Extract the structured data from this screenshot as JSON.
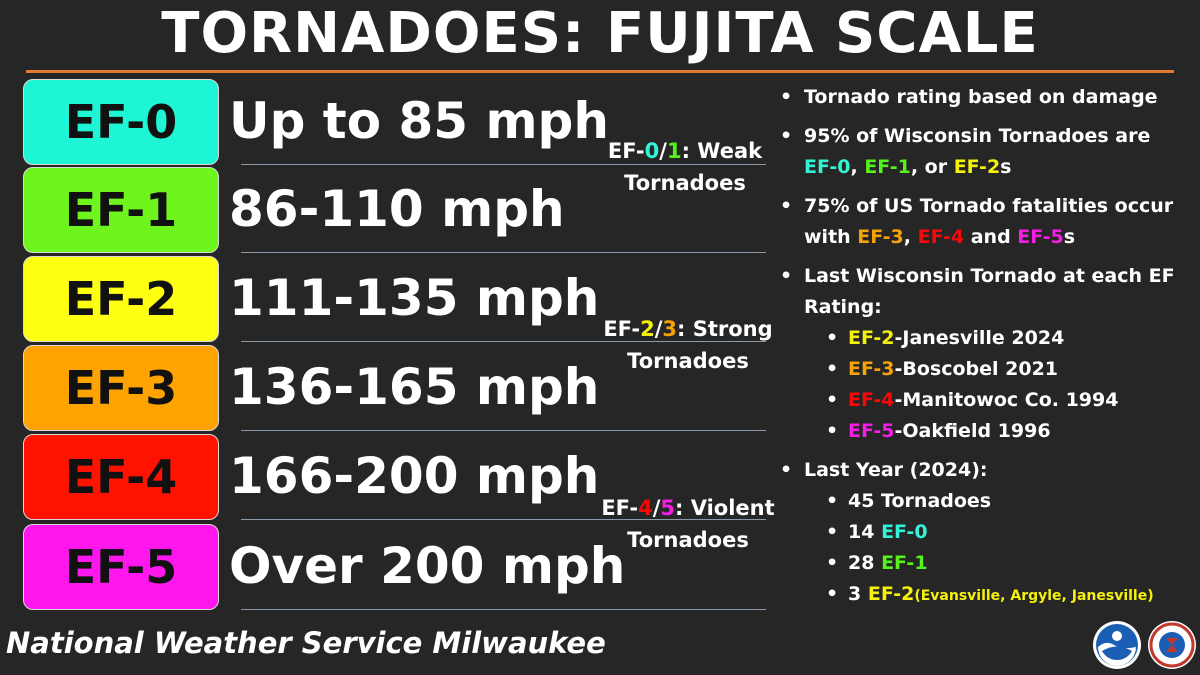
{
  "title": "TORNADOES: FUJITA SCALE",
  "scale": [
    {
      "label": "EF-0",
      "speed": "Up to 85 mph",
      "color": "#1ef5d5"
    },
    {
      "label": "EF-1",
      "speed": "86-110 mph",
      "color": "#6ef51c"
    },
    {
      "label": "EF-2",
      "speed": "111-135 mph",
      "color": "#ffff11"
    },
    {
      "label": "EF-3",
      "speed": "136-165 mph",
      "color": "#ffa300"
    },
    {
      "label": "EF-4",
      "speed": "166-200 mph",
      "color": "#ff1200"
    },
    {
      "label": "EF-5",
      "speed": "Over 200 mph",
      "color": "#ff17ee"
    }
  ],
  "categories": {
    "weak": {
      "prefix": "EF-",
      "a": "0",
      "sep": "/",
      "b": "1",
      "suffix": ": Weak",
      "line2": "Tornadoes"
    },
    "strong": {
      "prefix": "EF-",
      "a": "2",
      "sep": "/",
      "b": "3",
      "suffix": ": Strong",
      "line2": "Tornadoes"
    },
    "violent": {
      "prefix": "EF-",
      "a": "4",
      "sep": "/",
      "b": "5",
      "suffix": ": Violent",
      "line2": "Tornadoes"
    }
  },
  "facts": {
    "rating": "Tornado rating based on damage",
    "wi_pct_line1": "95% of Wisconsin Tornadoes are",
    "wi_ef0": "EF-0",
    "comma1": ", ",
    "wi_ef1": "EF-1",
    "or": ", or ",
    "wi_ef2": "EF-2",
    "s1": "s",
    "us_pct_line1": "75% of US Tornado fatalities occur",
    "with": "with ",
    "us_ef3": "EF-3",
    "comma2": ", ",
    "us_ef4": "EF-4",
    "and": " and ",
    "us_ef5": "EF-5",
    "s2": "s",
    "last_line1": "Last Wisconsin Tornado at each EF",
    "last_line2": "Rating:",
    "last_list": [
      {
        "ef": "EF-2",
        "place": "-Janesville 2024"
      },
      {
        "ef": "EF-3",
        "place": "-Boscobel 2021"
      },
      {
        "ef": "EF-4",
        "place": "-Manitowoc Co. 1994"
      },
      {
        "ef": "EF-5",
        "place": "-Oakfield 1996"
      }
    ],
    "last_year": "Last Year (2024):",
    "ly_total": "45 Tornadoes",
    "ly_ef0_count": "14 ",
    "ly_ef0": "EF-0",
    "ly_ef1_count": "28 ",
    "ly_ef1": "EF-1",
    "ly_ef2_count": "3 ",
    "ly_ef2": "EF-2",
    "ly_ef2_places": "(Evansville, Argyle, Janesville)"
  },
  "footer": "National Weather Service Milwaukee",
  "logos": {
    "noaa_icon": "noaa-logo",
    "nws_icon": "nws-logo"
  }
}
